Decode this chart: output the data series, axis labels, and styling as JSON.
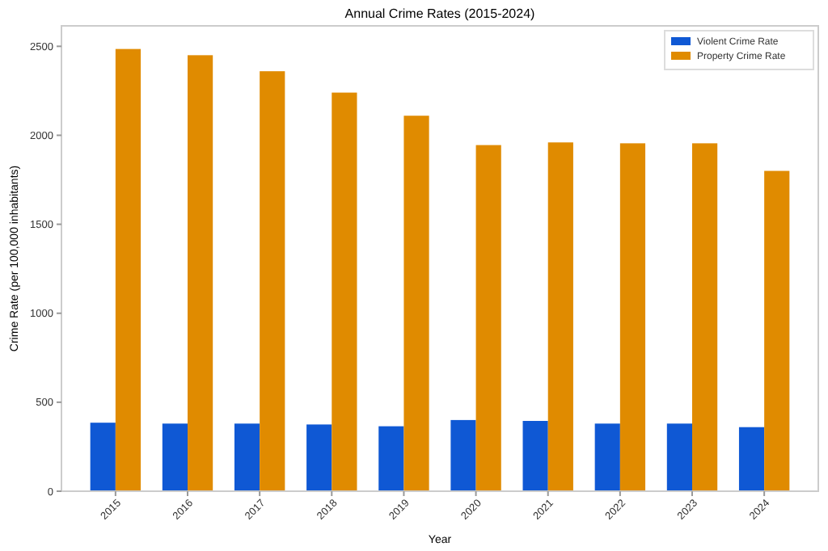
{
  "chart_data": {
    "type": "bar",
    "title": "Annual Crime Rates (2015-2024)",
    "xlabel": "Year",
    "ylabel": "Crime Rate (per 100,000 inhabitants)",
    "categories": [
      "2015",
      "2016",
      "2017",
      "2018",
      "2019",
      "2020",
      "2021",
      "2022",
      "2023",
      "2024"
    ],
    "series": [
      {
        "name": "Violent Crime Rate",
        "color": "#0f58d4",
        "values": [
          385,
          380,
          380,
          375,
          365,
          400,
          395,
          380,
          380,
          360
        ]
      },
      {
        "name": "Property Crime Rate",
        "color": "#e08b00",
        "values": [
          2485,
          2450,
          2360,
          2240,
          2110,
          1945,
          1960,
          1955,
          1955,
          1800
        ]
      }
    ],
    "ylim": [
      0,
      2615
    ],
    "yticks": [
      0,
      500,
      1000,
      1500,
      2000,
      2500
    ],
    "grid": false,
    "legend": "top right"
  }
}
